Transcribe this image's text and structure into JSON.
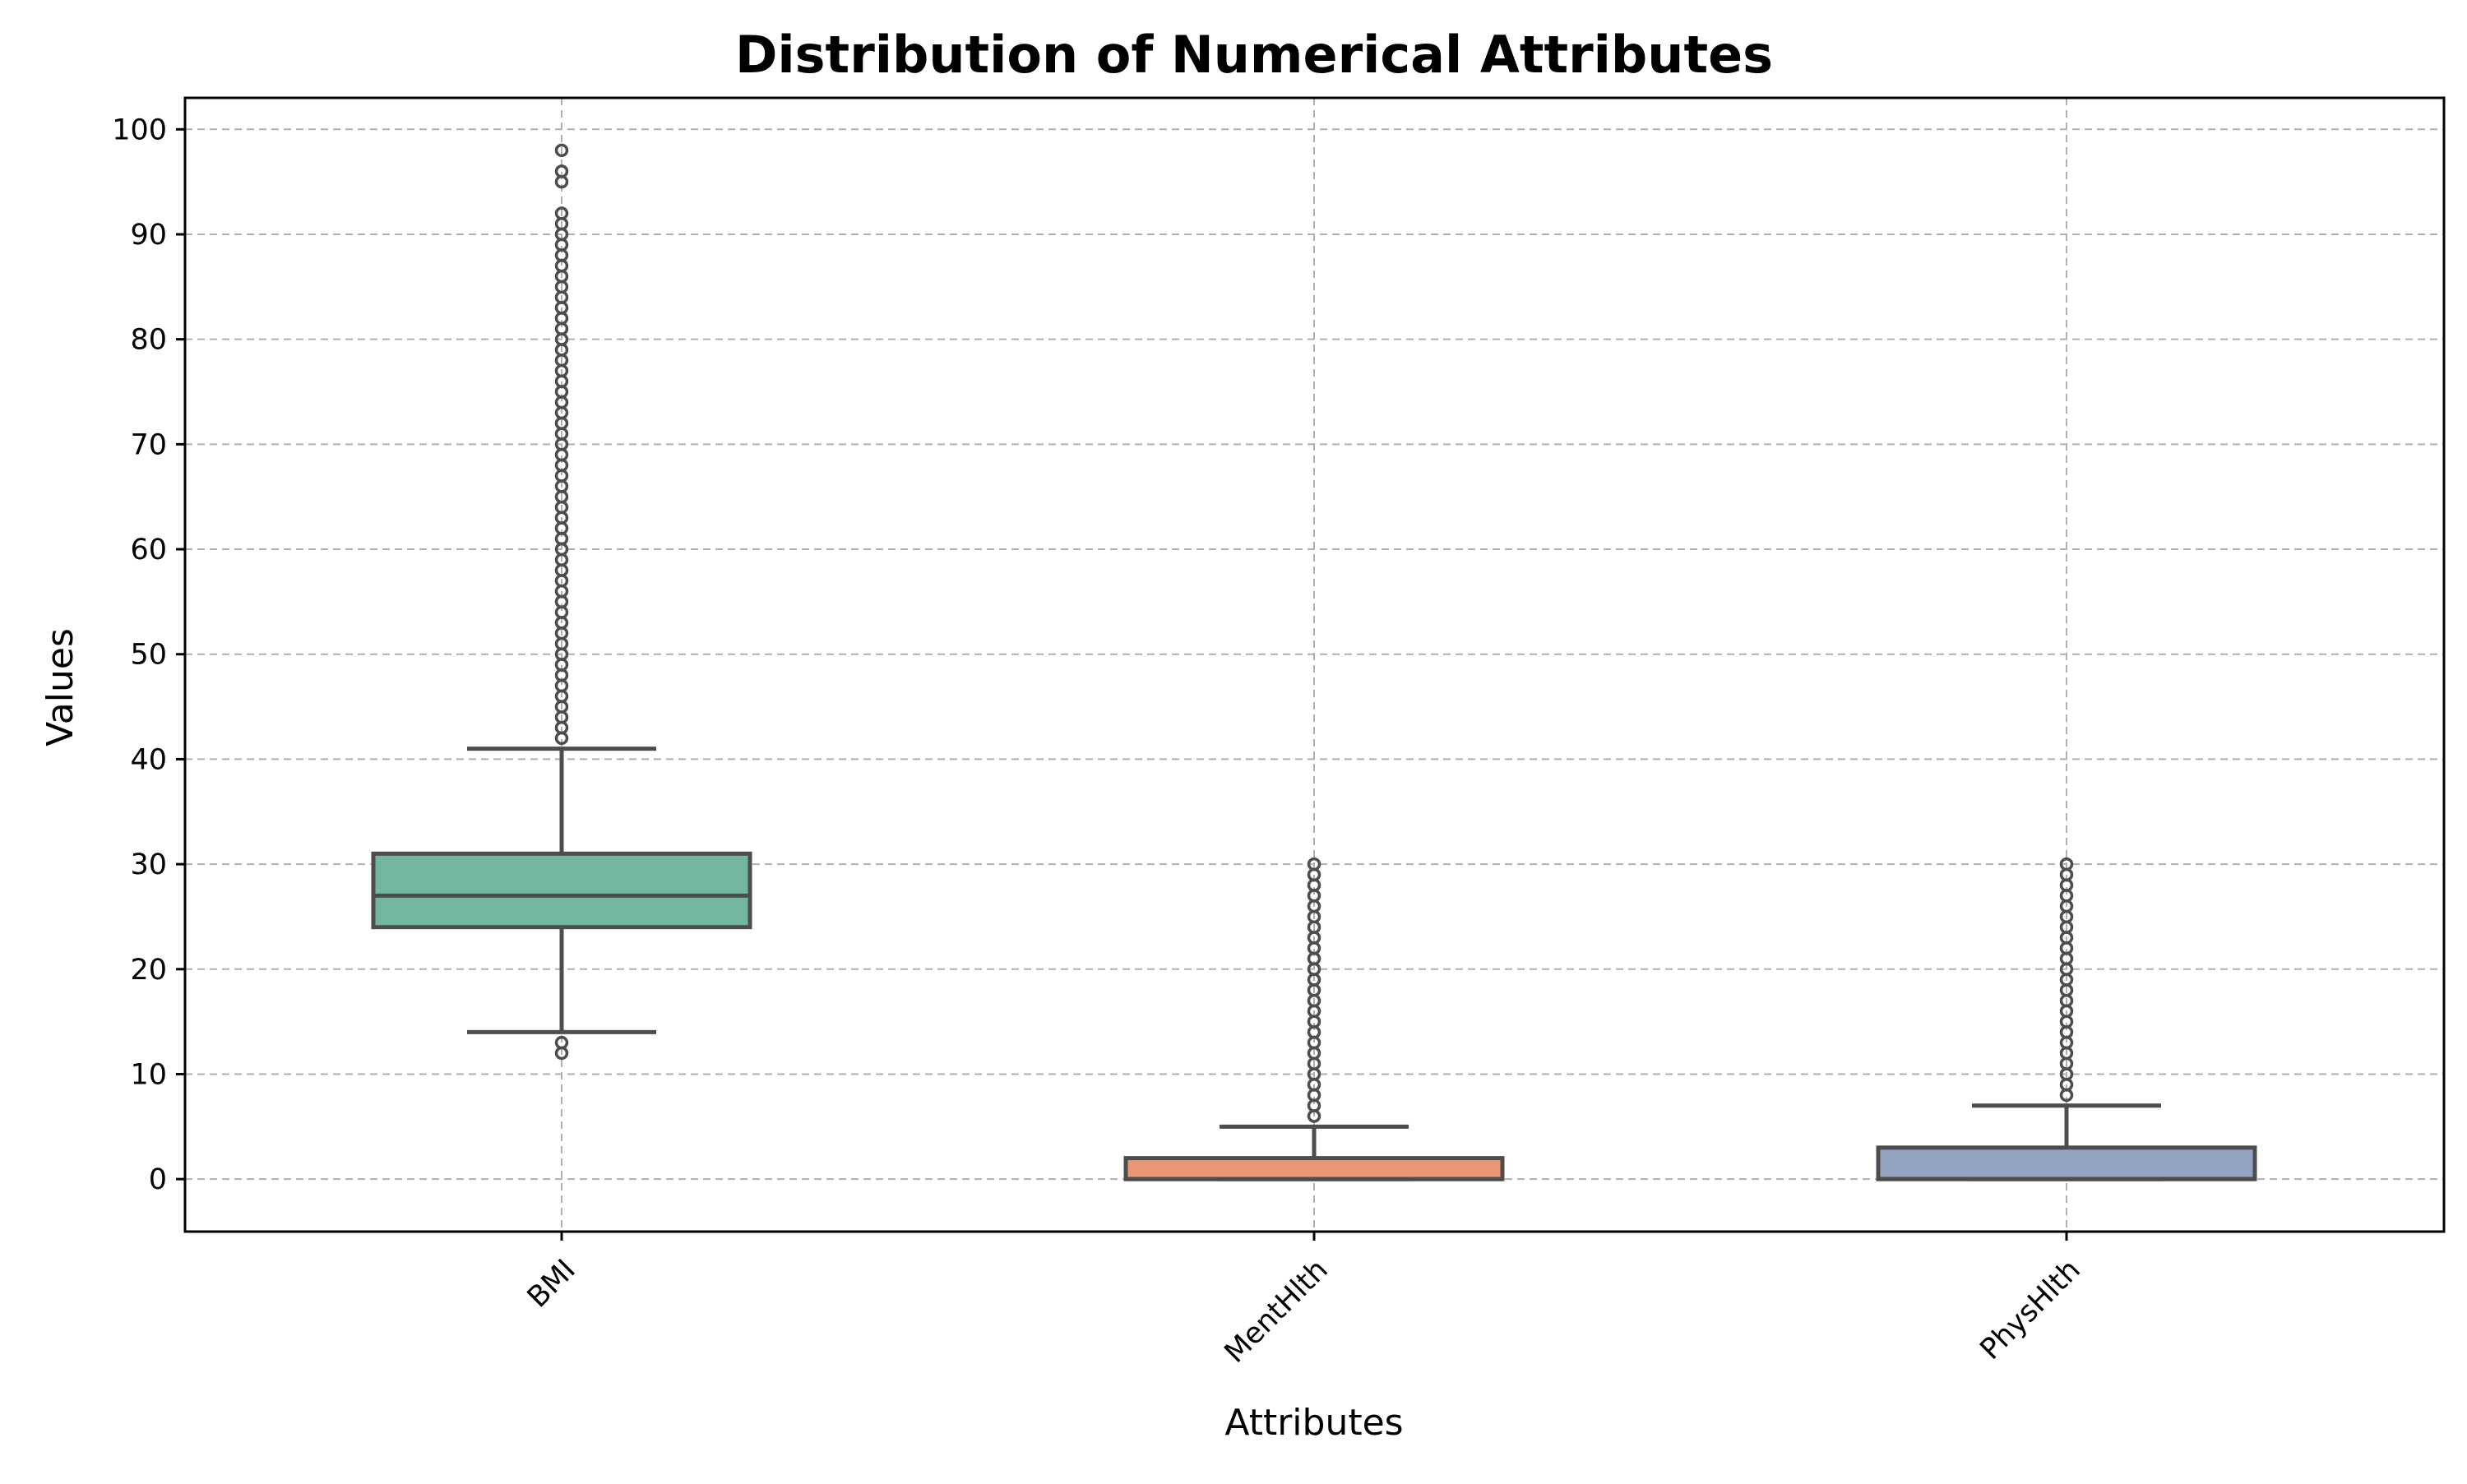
{
  "chart_data": {
    "type": "box",
    "title": "Distribution of Numerical Attributes",
    "xlabel": "Attributes",
    "ylabel": "Values",
    "ylim": [
      -5,
      103
    ],
    "yticks": [
      0,
      10,
      20,
      30,
      40,
      50,
      60,
      70,
      80,
      90,
      100
    ],
    "grid": true,
    "categories": [
      "BMI",
      "MentHlth",
      "PhysHlth"
    ],
    "series": [
      {
        "category": "BMI",
        "color": "#72b6a1",
        "whisker_low": 14,
        "q1": 24,
        "median": 27,
        "q3": 31,
        "whisker_high": 41,
        "outliers": [
          12,
          13,
          42,
          43,
          44,
          45,
          46,
          47,
          48,
          49,
          50,
          51,
          52,
          53,
          54,
          55,
          56,
          57,
          58,
          59,
          60,
          61,
          62,
          63,
          64,
          65,
          66,
          67,
          68,
          69,
          70,
          71,
          72,
          73,
          74,
          75,
          76,
          77,
          78,
          79,
          80,
          81,
          82,
          83,
          84,
          85,
          86,
          87,
          88,
          89,
          90,
          91,
          92,
          95,
          96,
          98
        ]
      },
      {
        "category": "MentHlth",
        "color": "#e99675",
        "whisker_low": 0,
        "q1": 0,
        "median": 0,
        "q3": 2,
        "whisker_high": 5,
        "outliers": [
          6,
          7,
          8,
          9,
          10,
          11,
          12,
          13,
          14,
          15,
          16,
          17,
          18,
          19,
          20,
          21,
          22,
          23,
          24,
          25,
          26,
          27,
          28,
          29,
          30
        ]
      },
      {
        "category": "PhysHlth",
        "color": "#95a3c3",
        "whisker_low": 0,
        "q1": 0,
        "median": 0,
        "q3": 3,
        "whisker_high": 7,
        "outliers": [
          8,
          9,
          10,
          11,
          12,
          13,
          14,
          15,
          16,
          17,
          18,
          19,
          20,
          21,
          22,
          23,
          24,
          25,
          26,
          27,
          28,
          29,
          30
        ]
      }
    ]
  }
}
